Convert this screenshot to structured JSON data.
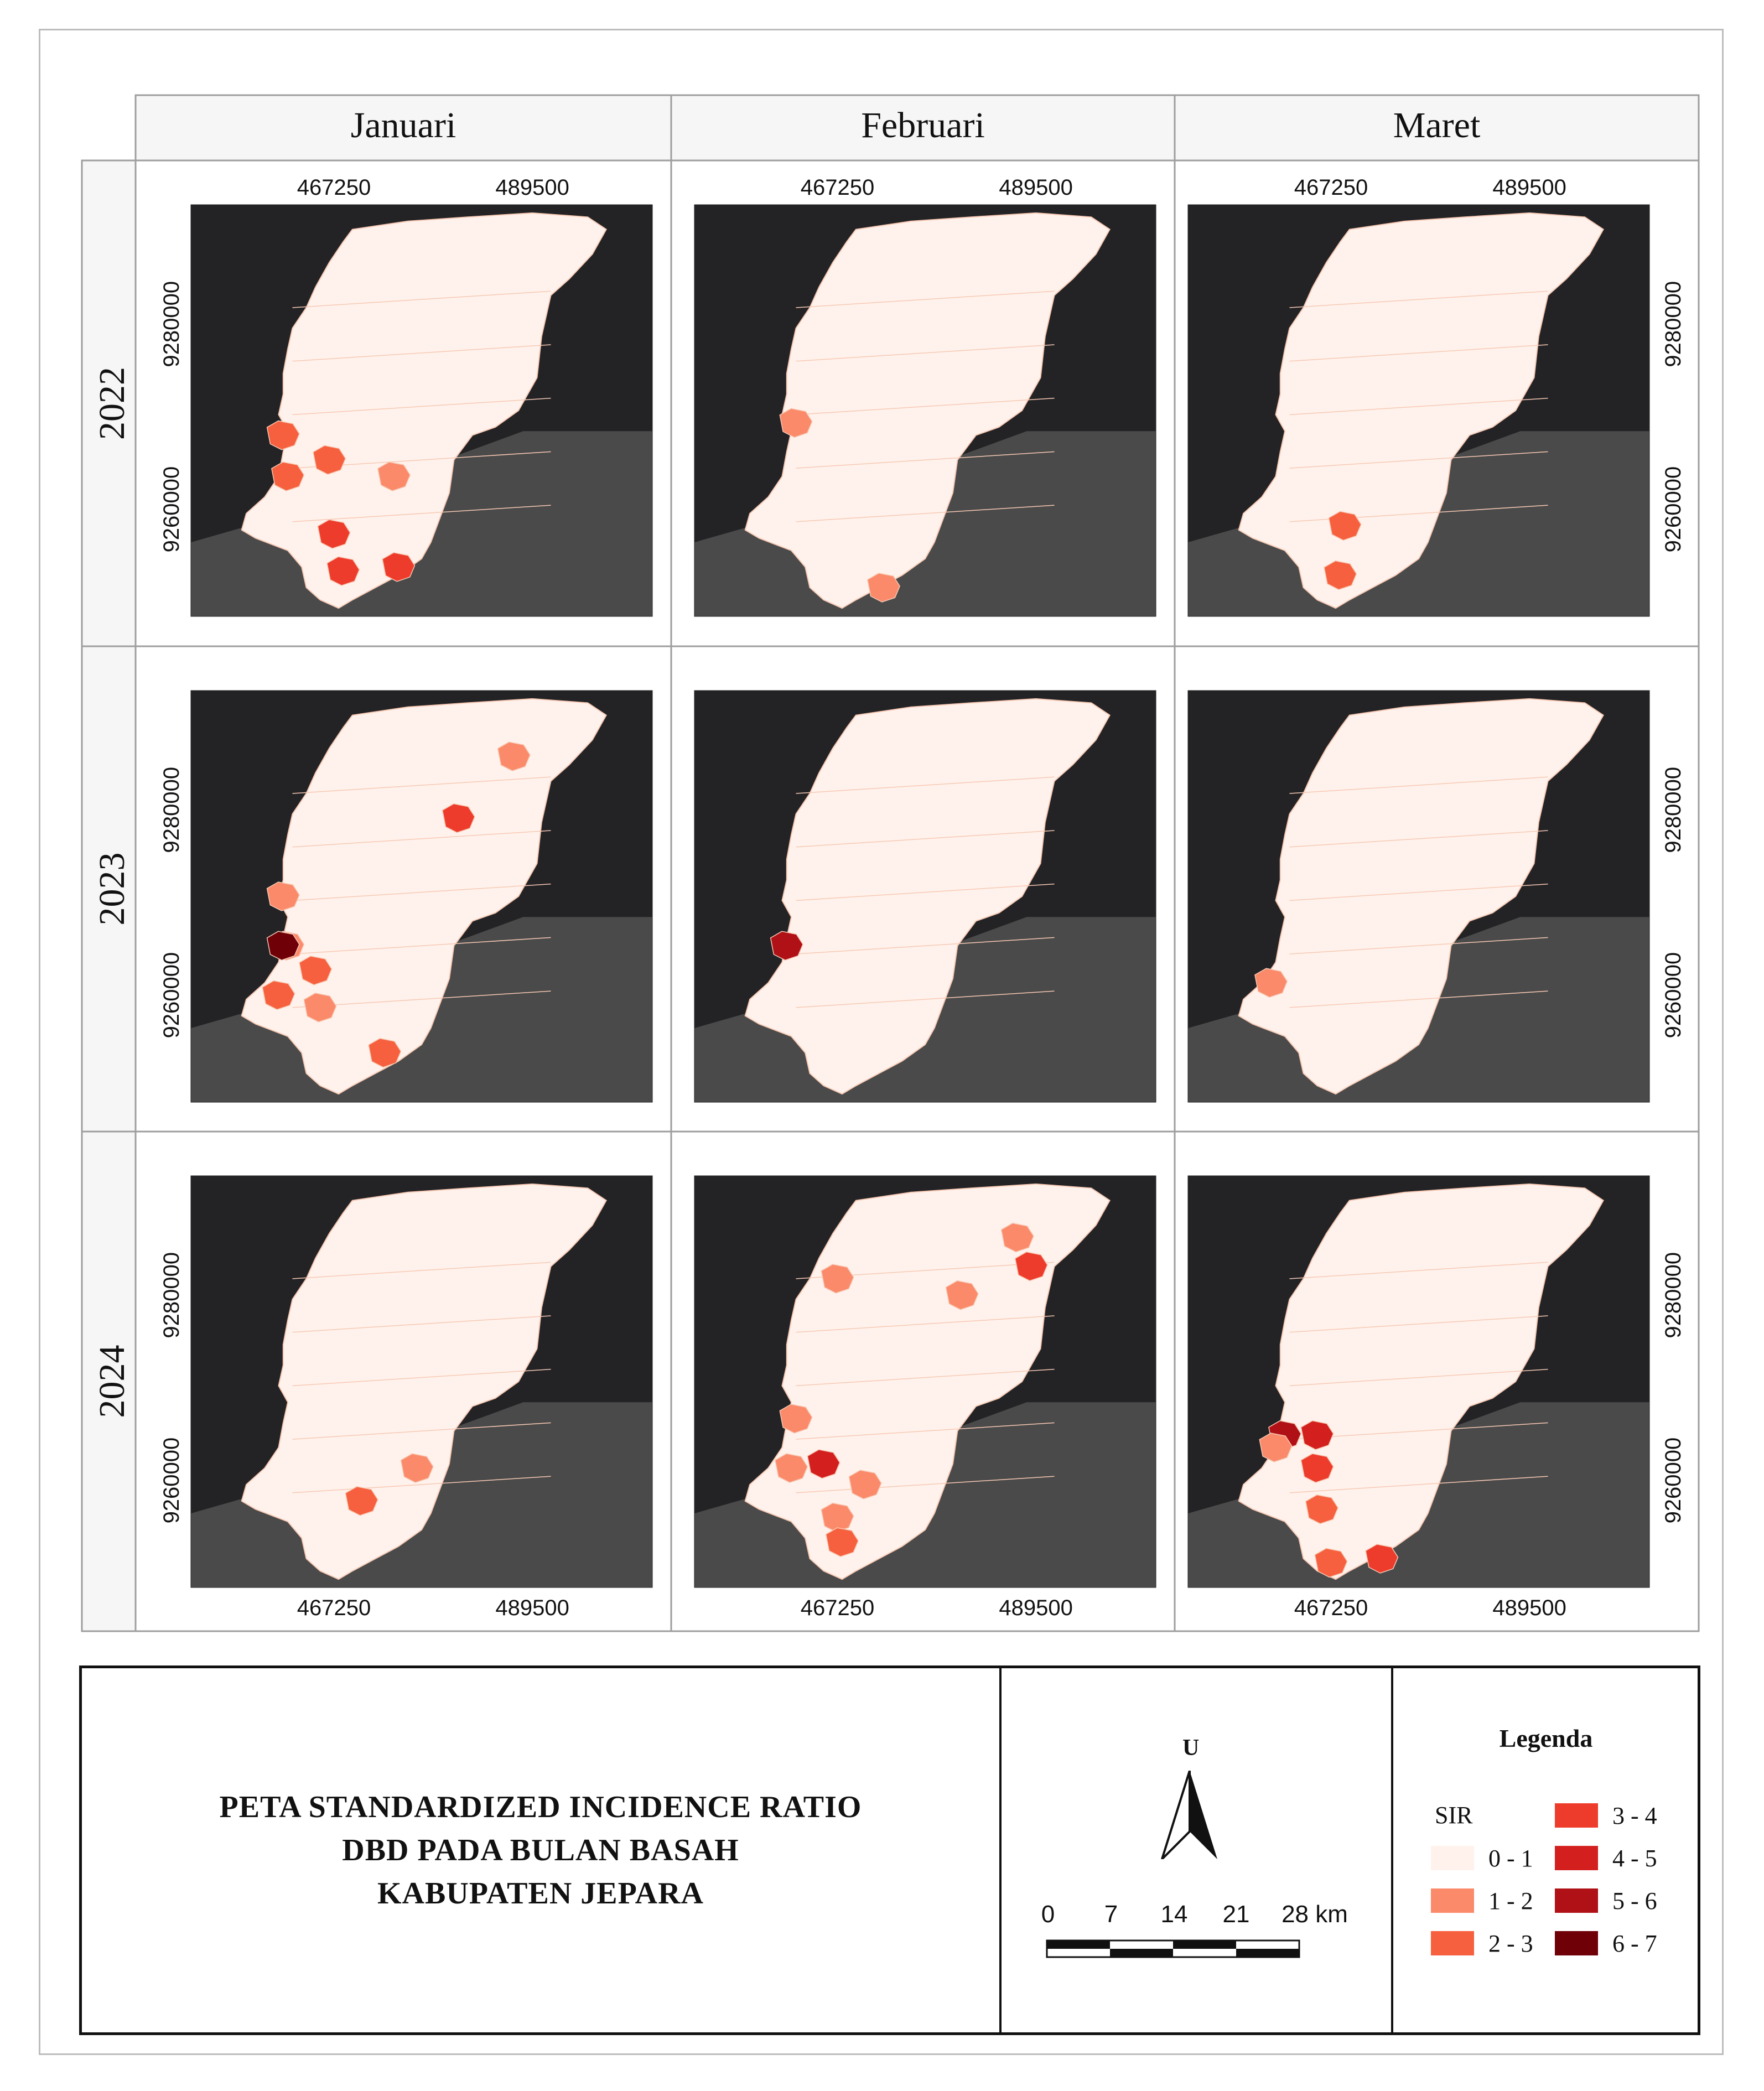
{
  "months": [
    "Januari",
    "Februari",
    "Maret"
  ],
  "years": [
    "2022",
    "2023",
    "2024"
  ],
  "coords": {
    "easting": [
      "467250",
      "489500"
    ],
    "northing": [
      "9280000",
      "9260000"
    ]
  },
  "title_lines": [
    "PETA STANDARDIZED INCIDENCE RATIO",
    "DBD PADA BULAN BASAH",
    "KABUPATEN JEPARA"
  ],
  "north": {
    "label": "U"
  },
  "scalebar": {
    "ticks": [
      "0",
      "7",
      "14",
      "21",
      "28 km"
    ]
  },
  "legend": {
    "title": "Legenda",
    "field": "SIR",
    "classes": [
      {
        "label": "0 - 1",
        "color": "#fff2ec"
      },
      {
        "label": "1 - 2",
        "color": "#fb8a6a"
      },
      {
        "label": "2 - 3",
        "color": "#f6603e"
      },
      {
        "label": "3 - 4",
        "color": "#ee3c2c"
      },
      {
        "label": "4 - 5",
        "color": "#d3201e"
      },
      {
        "label": "5 - 6",
        "color": "#b01116"
      },
      {
        "label": "6 - 7",
        "color": "#6f0008"
      }
    ]
  },
  "colors": {
    "sea": "#232326",
    "land_outside": "#4a4a4a",
    "boundary": "#f7c9b4"
  },
  "panels": [
    {
      "year": "2022",
      "month": "Januari",
      "hotspots": [
        {
          "u": 0.3,
          "v": 0.62,
          "cls": 2
        },
        {
          "u": 0.44,
          "v": 0.66,
          "cls": 1
        },
        {
          "u": 0.31,
          "v": 0.8,
          "cls": 3
        },
        {
          "u": 0.33,
          "v": 0.89,
          "cls": 3
        },
        {
          "u": 0.45,
          "v": 0.88,
          "cls": 3
        },
        {
          "u": 0.21,
          "v": 0.66,
          "cls": 2
        },
        {
          "u": 0.2,
          "v": 0.56,
          "cls": 2
        }
      ]
    },
    {
      "year": "2022",
      "month": "Februari",
      "hotspots": [
        {
          "u": 0.22,
          "v": 0.53,
          "cls": 1
        },
        {
          "u": 0.41,
          "v": 0.93,
          "cls": 1
        }
      ]
    },
    {
      "year": "2022",
      "month": "Maret",
      "hotspots": [
        {
          "u": 0.34,
          "v": 0.78,
          "cls": 2
        },
        {
          "u": 0.33,
          "v": 0.9,
          "cls": 2
        }
      ]
    },
    {
      "year": "2023",
      "month": "Januari",
      "hotspots": [
        {
          "u": 0.7,
          "v": 0.16,
          "cls": 1
        },
        {
          "u": 0.58,
          "v": 0.31,
          "cls": 3
        },
        {
          "u": 0.27,
          "v": 0.68,
          "cls": 2
        },
        {
          "u": 0.21,
          "v": 0.62,
          "cls": 1
        },
        {
          "u": 0.2,
          "v": 0.5,
          "cls": 1
        },
        {
          "u": 0.19,
          "v": 0.74,
          "cls": 2
        },
        {
          "u": 0.2,
          "v": 0.62,
          "cls": 6
        },
        {
          "u": 0.28,
          "v": 0.77,
          "cls": 1
        },
        {
          "u": 0.42,
          "v": 0.88,
          "cls": 2
        }
      ]
    },
    {
      "year": "2023",
      "month": "Februari",
      "hotspots": [
        {
          "u": 0.2,
          "v": 0.62,
          "cls": 5
        }
      ]
    },
    {
      "year": "2023",
      "month": "Maret",
      "hotspots": [
        {
          "u": 0.18,
          "v": 0.71,
          "cls": 1
        }
      ]
    },
    {
      "year": "2024",
      "month": "Januari",
      "hotspots": [
        {
          "u": 0.49,
          "v": 0.71,
          "cls": 1
        },
        {
          "u": 0.37,
          "v": 0.79,
          "cls": 2
        }
      ]
    },
    {
      "year": "2024",
      "month": "Februari",
      "hotspots": [
        {
          "u": 0.7,
          "v": 0.15,
          "cls": 1
        },
        {
          "u": 0.73,
          "v": 0.22,
          "cls": 3
        },
        {
          "u": 0.31,
          "v": 0.25,
          "cls": 1
        },
        {
          "u": 0.58,
          "v": 0.29,
          "cls": 1
        },
        {
          "u": 0.28,
          "v": 0.7,
          "cls": 4
        },
        {
          "u": 0.21,
          "v": 0.71,
          "cls": 1
        },
        {
          "u": 0.22,
          "v": 0.59,
          "cls": 1
        },
        {
          "u": 0.37,
          "v": 0.75,
          "cls": 1
        },
        {
          "u": 0.31,
          "v": 0.83,
          "cls": 1
        },
        {
          "u": 0.32,
          "v": 0.89,
          "cls": 2
        }
      ]
    },
    {
      "year": "2024",
      "month": "Maret",
      "hotspots": [
        {
          "u": 0.28,
          "v": 0.63,
          "cls": 4
        },
        {
          "u": 0.28,
          "v": 0.71,
          "cls": 3
        },
        {
          "u": 0.21,
          "v": 0.63,
          "cls": 5
        },
        {
          "u": 0.19,
          "v": 0.66,
          "cls": 1
        },
        {
          "u": 0.29,
          "v": 0.81,
          "cls": 2
        },
        {
          "u": 0.31,
          "v": 0.94,
          "cls": 2
        },
        {
          "u": 0.42,
          "v": 0.93,
          "cls": 3
        }
      ]
    }
  ]
}
